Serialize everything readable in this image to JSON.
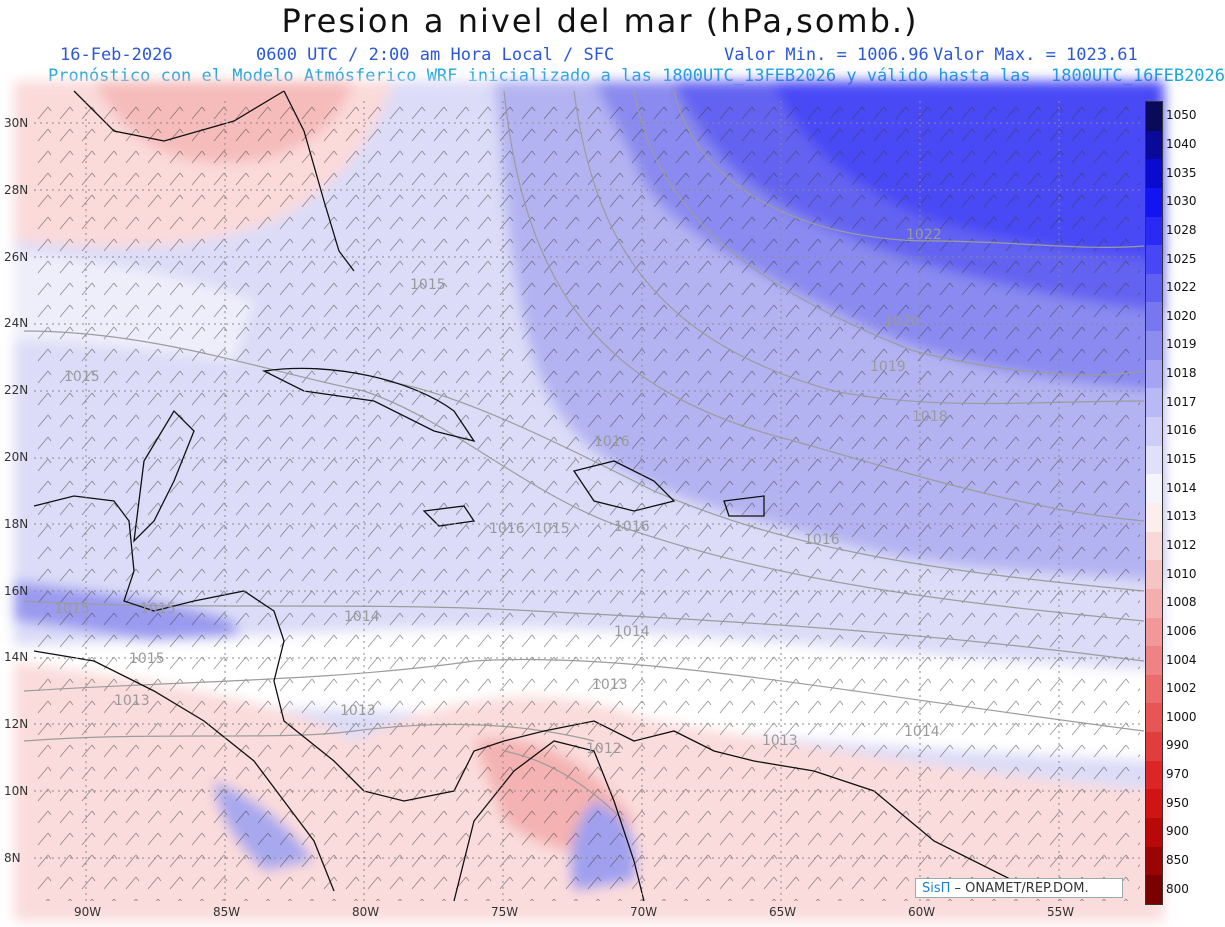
{
  "title": "Presion a nivel del mar (hPa,somb.)",
  "date": "16-Feb-2026",
  "time": "0600 UTC / 2:00 am Hora Local / SFC",
  "vmin": "Valor Min. = 1006.96",
  "vmax": "Valor Max. = 1023.61",
  "forecast": "Pronóstico con el Modelo Atmósferico WRF inicializado a las 1800UTC_13FEB2026 y válido hasta las  1800UTC_16FEB2026",
  "lat_labels": [
    "30N",
    "28N",
    "26N",
    "24N",
    "22N",
    "20N",
    "18N",
    "16N",
    "14N",
    "12N",
    "10N",
    "8N"
  ],
  "lon_labels": [
    "90W",
    "85W",
    "80W",
    "75W",
    "70W",
    "65W",
    "60W",
    "55W"
  ],
  "legend": {
    "labels": [
      "1050",
      "1040",
      "1035",
      "1030",
      "1028",
      "1025",
      "1022",
      "1020",
      "1019",
      "1018",
      "1017",
      "1016",
      "1015",
      "1014",
      "1013",
      "1012",
      "1010",
      "1008",
      "1006",
      "1004",
      "1002",
      "1000",
      "990",
      "970",
      "950",
      "900",
      "850",
      "800"
    ],
    "colors": [
      "#0a0a5a",
      "#0a0a9a",
      "#0b0bd0",
      "#1414f2",
      "#2a2af5",
      "#4747f5",
      "#5f5ff2",
      "#7777f0",
      "#8d8df0",
      "#a4a4f2",
      "#b9b9f5",
      "#cdcdf7",
      "#e0e0fa",
      "#f4f4fc",
      "#fdeeee",
      "#f9d8d8",
      "#f7c4c4",
      "#f4aeae",
      "#f29898",
      "#ef8282",
      "#ec6c6c",
      "#e85555",
      "#e23d3d",
      "#dc2626",
      "#d01313",
      "#b80808",
      "#9a0404",
      "#7a0000"
    ]
  },
  "isobars": [
    "1022",
    "1020",
    "1019",
    "1018",
    "1016",
    "1016",
    "1016",
    "1015",
    "1015",
    "1015",
    "1015",
    "1015",
    "1014",
    "1014",
    "1014",
    "1013",
    "1013",
    "1013",
    "1013",
    "1012",
    "1015",
    "1016"
  ],
  "credit": {
    "logo": "SisΠ",
    "text": " – ONAMET/REP.DOM."
  }
}
